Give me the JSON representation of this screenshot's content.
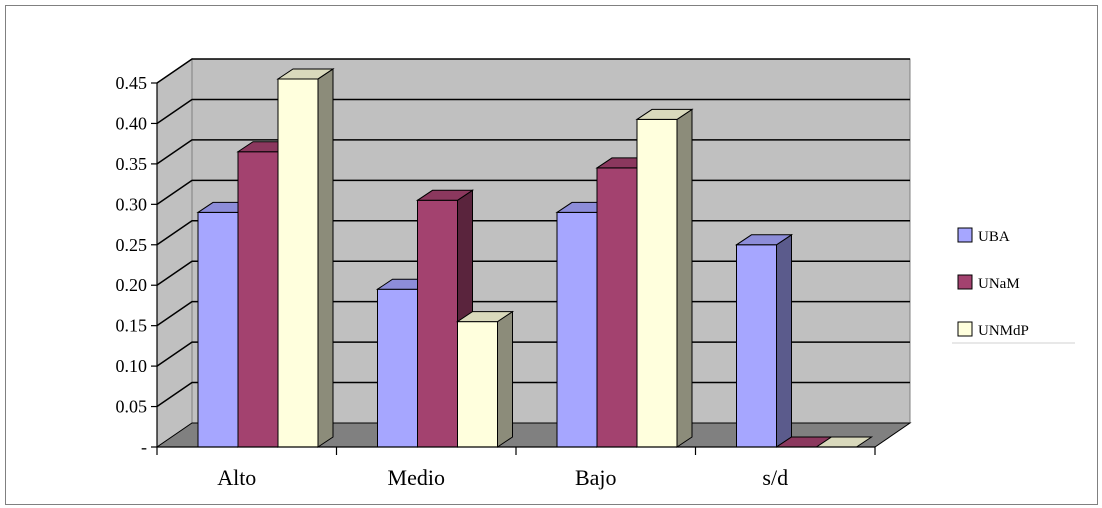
{
  "chart_data": {
    "type": "bar",
    "style": "3d-clustered-column",
    "categories": [
      "Alto",
      "Medio",
      "Bajo",
      "s/d"
    ],
    "series": [
      {
        "name": "UBA",
        "values": [
          0.29,
          0.195,
          0.29,
          0.25
        ],
        "color": "#A6A6FF"
      },
      {
        "name": "UNaM",
        "values": [
          0.365,
          0.305,
          0.345,
          0.0
        ],
        "color": "#A3426F"
      },
      {
        "name": "UNMdP",
        "values": [
          0.455,
          0.155,
          0.405,
          0.0
        ],
        "color": "#FFFFDD"
      }
    ],
    "y_ticks": [
      "-",
      "0.05",
      "0.10",
      "0.15",
      "0.20",
      "0.25",
      "0.30",
      "0.35",
      "0.40",
      "0.45"
    ],
    "ylim": [
      0,
      0.45
    ],
    "title": "",
    "xlabel": "",
    "ylabel": "",
    "grid": true,
    "legend_position": "right",
    "wall_color": "#C0C0C0",
    "floor_color": "#808080"
  }
}
